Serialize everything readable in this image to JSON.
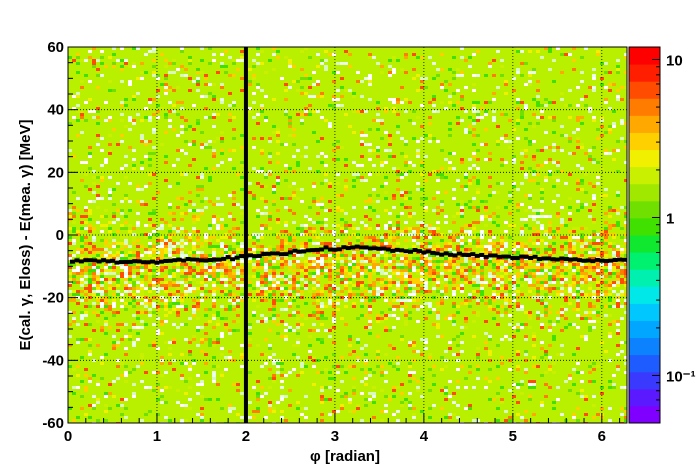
{
  "chart_data": {
    "type": "heatmap",
    "title": "",
    "xlabel": "φ [radian]",
    "ylabel": "E(cal. γ, Eloss) - E(mea.  γ) [MeV]",
    "xlim": [
      0,
      6.283
    ],
    "ylim": [
      -60,
      60
    ],
    "x_ticks": [
      0,
      1,
      2,
      3,
      4,
      5,
      6
    ],
    "y_ticks": [
      -60,
      -40,
      -20,
      0,
      20,
      40,
      60
    ],
    "grid": true,
    "colorbar": {
      "scale": "log",
      "range": [
        0.05,
        12
      ],
      "tick_labels": [
        "10",
        "1",
        "10⁻¹"
      ],
      "tick_values": [
        10,
        1,
        0.1
      ],
      "palette": [
        "#7f00ff",
        "#5b19ff",
        "#3a3aff",
        "#1f5cff",
        "#0c82ff",
        "#00a6ff",
        "#00c8ff",
        "#00e8e8",
        "#00f0b0",
        "#00f070",
        "#10e830",
        "#40e000",
        "#70e000",
        "#a0e800",
        "#c8f000",
        "#f0f000",
        "#ffd000",
        "#ffa800",
        "#ff7c00",
        "#ff4c00",
        "#ff1e00",
        "#ff0000"
      ]
    },
    "heatmap": {
      "background_level": 1,
      "dense_band": {
        "y_center": -10,
        "y_halfwidth": 12,
        "level": 3
      }
    },
    "mean_profile": {
      "name": "",
      "x": [
        0.05,
        0.25,
        0.45,
        0.65,
        0.85,
        1.05,
        1.25,
        1.45,
        1.65,
        1.85,
        2.05,
        2.25,
        2.45,
        2.65,
        2.85,
        3.05,
        3.25,
        3.45,
        3.65,
        3.85,
        4.05,
        4.25,
        4.45,
        4.65,
        4.85,
        5.05,
        5.25,
        5.45,
        5.65,
        5.85,
        6.05,
        6.25
      ],
      "y": [
        -8.5,
        -8.0,
        -8.5,
        -8.8,
        -9.0,
        -8.5,
        -8.2,
        -8.0,
        -7.8,
        -7.5,
        -7.0,
        -6.5,
        -6.0,
        -5.0,
        -4.5,
        -4.5,
        -4.2,
        -4.5,
        -5.0,
        -5.2,
        -5.8,
        -6.2,
        -6.5,
        -6.8,
        -7.0,
        -7.2,
        -7.5,
        -7.8,
        -8.0,
        -8.2,
        -8.5,
        -8.2
      ]
    },
    "vertical_line": {
      "x": 2.0,
      "color": "#000000"
    },
    "colors": {
      "frame": "#000000",
      "grid": "#000000",
      "profile": "#000000"
    }
  }
}
